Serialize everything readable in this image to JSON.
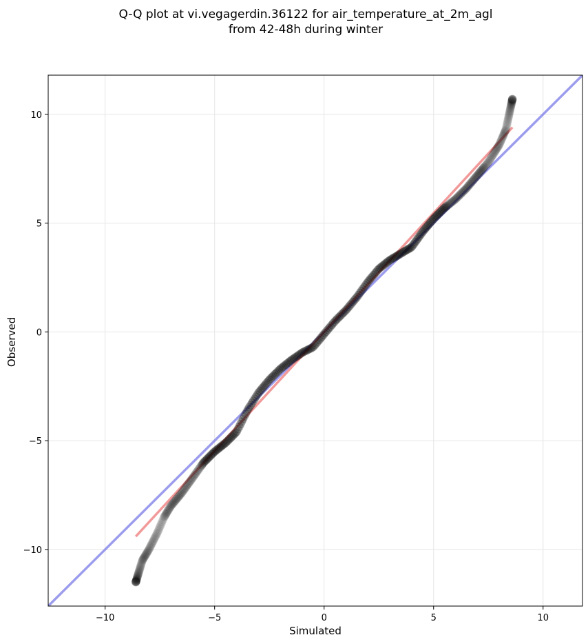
{
  "chart_data": {
    "type": "scatter",
    "title": "Q-Q plot at vi.vegagerdin.36122 for air_temperature_at_2m_agl",
    "subtitle": "from 42-48h during winter",
    "xlabel": "Simulated",
    "ylabel": "Observed",
    "xlim": [
      -12.6,
      11.8
    ],
    "ylim": [
      -12.6,
      11.8
    ],
    "xticks": [
      -10,
      -5,
      0,
      5,
      10
    ],
    "yticks": [
      -10,
      -5,
      0,
      5,
      10
    ],
    "xtick_labels": [
      "−10",
      "−5",
      "0",
      "5",
      "10"
    ],
    "ytick_labels": [
      "−10",
      "−5",
      "0",
      "5",
      "10"
    ],
    "grid": true,
    "points_color": "#000000",
    "identity_line": {
      "color": "#7b7be8",
      "from": [
        -12.6,
        -12.6
      ],
      "to": [
        11.8,
        11.8
      ]
    },
    "fit_line": {
      "color": "#ee7777",
      "from": [
        -8.6,
        -9.4
      ],
      "to": [
        8.6,
        9.4
      ]
    },
    "quantile_anchors": {
      "x": [
        -8.6,
        -8.3,
        -8.0,
        -7.6,
        -7.3,
        -7.0,
        -6.5,
        -6.0,
        -5.5,
        -5.0,
        -4.5,
        -4.0,
        -3.5,
        -3.0,
        -2.5,
        -2.0,
        -1.5,
        -1.0,
        -0.5,
        0.0,
        0.5,
        1.0,
        1.5,
        2.0,
        2.5,
        3.0,
        3.5,
        4.0,
        4.5,
        5.0,
        5.5,
        6.0,
        6.5,
        7.0,
        7.5,
        8.0,
        8.3,
        8.6
      ],
      "y": [
        -11.5,
        -10.5,
        -10.0,
        -9.2,
        -8.5,
        -8.0,
        -7.4,
        -6.7,
        -6.0,
        -5.5,
        -5.1,
        -4.6,
        -3.6,
        -2.8,
        -2.2,
        -1.7,
        -1.3,
        -0.95,
        -0.7,
        -0.1,
        0.5,
        1.0,
        1.6,
        2.3,
        2.9,
        3.3,
        3.6,
        3.9,
        4.6,
        5.2,
        5.7,
        6.1,
        6.6,
        7.2,
        7.8,
        8.6,
        9.3,
        10.7
      ]
    },
    "n_points": 420
  }
}
